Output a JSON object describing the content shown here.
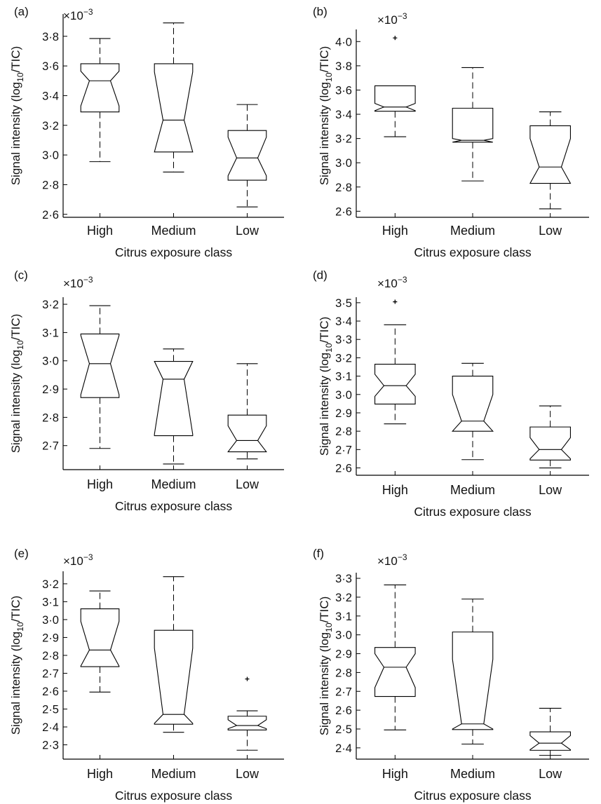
{
  "figure": {
    "panels": [
      "(a)",
      "(b)",
      "(c)",
      "(d)",
      "(e)",
      "(f)"
    ]
  },
  "chart_data": [
    {
      "type": "box",
      "panel_label": "(a)",
      "exponent_label": "×10",
      "exponent_power": "−3",
      "ylabel_main": "Signal intensity (log",
      "ylabel_sub": "10",
      "ylabel_tail": "/TIC)",
      "xlabel": "Citrus exposure class",
      "categories": [
        "High",
        "Medium",
        "Low"
      ],
      "ylim": [
        2.58,
        3.95
      ],
      "yticks": [
        2.6,
        2.8,
        3.0,
        3.2,
        3.4,
        3.6,
        3.8
      ],
      "ytick_labels": [
        "2·6",
        "2·8",
        "3·0",
        "3·2",
        "3·4",
        "3·6",
        "3·8"
      ],
      "boxes": [
        {
          "whislo": 2.955,
          "q1": 3.29,
          "med": 3.5,
          "q3": 3.615,
          "whishi": 3.785,
          "notch_lo": 3.33,
          "notch_hi": 3.565,
          "outliers": []
        },
        {
          "whislo": 2.885,
          "q1": 3.02,
          "med": 3.235,
          "q3": 3.615,
          "whishi": 3.89,
          "notch_lo": 3.02,
          "notch_hi": 3.56,
          "outliers": []
        },
        {
          "whislo": 2.65,
          "q1": 2.83,
          "med": 2.98,
          "q3": 3.165,
          "whishi": 3.34,
          "notch_lo": 2.86,
          "notch_hi": 3.12,
          "outliers": []
        }
      ]
    },
    {
      "type": "box",
      "panel_label": "(b)",
      "exponent_label": "×10",
      "exponent_power": "−3",
      "ylabel_main": "Signal intensity (log",
      "ylabel_sub": "10",
      "ylabel_tail": "/TIC)",
      "xlabel": "Citrus exposure class",
      "categories": [
        "High",
        "Medium",
        "Low"
      ],
      "ylim": [
        2.55,
        4.1
      ],
      "yticks": [
        2.6,
        2.8,
        3.0,
        3.2,
        3.4,
        3.6,
        3.8,
        4.0
      ],
      "ytick_labels": [
        "2·6",
        "2·8",
        "3·0",
        "3·2",
        "3·4",
        "3·6",
        "3·8",
        "4·0"
      ],
      "boxes": [
        {
          "whislo": 3.215,
          "q1": 3.425,
          "med": 3.46,
          "q3": 3.635,
          "whishi": 3.635,
          "notch_lo": 3.43,
          "notch_hi": 3.49,
          "outliers": [
            4.03
          ]
        },
        {
          "whislo": 2.85,
          "q1": 3.17,
          "med": 3.185,
          "q3": 3.45,
          "whishi": 3.785,
          "notch_lo": 3.17,
          "notch_hi": 3.2,
          "outliers": []
        },
        {
          "whislo": 2.62,
          "q1": 2.83,
          "med": 2.965,
          "q3": 3.305,
          "whishi": 3.42,
          "notch_lo": 2.83,
          "notch_hi": 3.2,
          "outliers": []
        }
      ]
    },
    {
      "type": "box",
      "panel_label": "(c)",
      "exponent_label": "×10",
      "exponent_power": "−3",
      "ylabel_main": "Signal intensity (log",
      "ylabel_sub": "10",
      "ylabel_tail": "/TIC)",
      "xlabel": "Citrus exposure class",
      "categories": [
        "High",
        "Medium",
        "Low"
      ],
      "ylim": [
        2.615,
        3.225
      ],
      "yticks": [
        2.7,
        2.8,
        2.9,
        3.0,
        3.1,
        3.2
      ],
      "ytick_labels": [
        "2·7",
        "2·8",
        "2·9",
        "3·0",
        "3·1",
        "3·2"
      ],
      "boxes": [
        {
          "whislo": 2.69,
          "q1": 2.87,
          "med": 2.99,
          "q3": 3.095,
          "whishi": 3.195,
          "notch_lo": 2.88,
          "notch_hi": 3.09,
          "outliers": []
        },
        {
          "whislo": 2.635,
          "q1": 2.735,
          "med": 2.935,
          "q3": 2.998,
          "whishi": 3.042,
          "notch_lo": 2.74,
          "notch_hi": 2.998,
          "outliers": []
        },
        {
          "whislo": 2.653,
          "q1": 2.678,
          "med": 2.718,
          "q3": 2.808,
          "whishi": 2.99,
          "notch_lo": 2.678,
          "notch_hi": 2.77,
          "outliers": []
        }
      ]
    },
    {
      "type": "box",
      "panel_label": "(d)",
      "exponent_label": "×10",
      "exponent_power": "−3",
      "ylabel_main": "Signal intensity (log",
      "ylabel_sub": "10",
      "ylabel_tail": "/TIC)",
      "xlabel": "Citrus exposure class",
      "categories": [
        "High",
        "Medium",
        "Low"
      ],
      "ylim": [
        2.56,
        3.53
      ],
      "yticks": [
        2.6,
        2.7,
        2.8,
        2.9,
        3.0,
        3.1,
        3.2,
        3.3,
        3.4,
        3.5
      ],
      "ytick_labels": [
        "2·6",
        "2·7",
        "2·8",
        "2·9",
        "3·0",
        "3·1",
        "3·2",
        "3·3",
        "3·4",
        "3·5"
      ],
      "boxes": [
        {
          "whislo": 2.84,
          "q1": 2.948,
          "med": 3.048,
          "q3": 3.165,
          "whishi": 3.38,
          "notch_lo": 2.99,
          "notch_hi": 3.11,
          "outliers": [
            3.505
          ]
        },
        {
          "whislo": 2.645,
          "q1": 2.8,
          "med": 2.855,
          "q3": 3.1,
          "whishi": 3.17,
          "notch_lo": 2.8,
          "notch_hi": 3.0,
          "outliers": []
        },
        {
          "whislo": 2.6,
          "q1": 2.643,
          "med": 2.7,
          "q3": 2.823,
          "whishi": 2.938,
          "notch_lo": 2.65,
          "notch_hi": 2.765,
          "outliers": []
        }
      ]
    },
    {
      "type": "box",
      "panel_label": "(e)",
      "exponent_label": "×10",
      "exponent_power": "−3",
      "ylabel_main": "Signal intensity (log",
      "ylabel_sub": "10",
      "ylabel_tail": "/TIC)",
      "xlabel": "Citrus exposure class",
      "categories": [
        "High",
        "Medium",
        "Low"
      ],
      "ylim": [
        2.22,
        3.27
      ],
      "yticks": [
        2.3,
        2.4,
        2.5,
        2.6,
        2.7,
        2.8,
        2.9,
        3.0,
        3.1,
        3.2
      ],
      "ytick_labels": [
        "2·3",
        "2·4",
        "2·5",
        "2·6",
        "2·7",
        "2·8",
        "2·9",
        "3·0",
        "3·1",
        "3·2"
      ],
      "boxes": [
        {
          "whislo": 2.595,
          "q1": 2.737,
          "med": 2.83,
          "q3": 3.06,
          "whishi": 3.16,
          "notch_lo": 2.74,
          "notch_hi": 2.99,
          "outliers": []
        },
        {
          "whislo": 2.37,
          "q1": 2.415,
          "med": 2.47,
          "q3": 2.94,
          "whishi": 3.24,
          "notch_lo": 2.42,
          "notch_hi": 2.84,
          "outliers": []
        },
        {
          "whislo": 2.27,
          "q1": 2.383,
          "med": 2.408,
          "q3": 2.46,
          "whishi": 2.49,
          "notch_lo": 2.39,
          "notch_hi": 2.44,
          "outliers": [
            2.668
          ]
        }
      ]
    },
    {
      "type": "box",
      "panel_label": "(f)",
      "exponent_label": "×10",
      "exponent_power": "−3",
      "ylabel_main": "Signal intensity (log",
      "ylabel_sub": "10",
      "ylabel_tail": "/TIC)",
      "xlabel": "Citrus exposure class",
      "categories": [
        "High",
        "Medium",
        "Low"
      ],
      "ylim": [
        2.34,
        3.33
      ],
      "yticks": [
        2.4,
        2.5,
        2.6,
        2.7,
        2.8,
        2.9,
        3.0,
        3.1,
        3.2,
        3.3
      ],
      "ytick_labels": [
        "2·4",
        "2·5",
        "2·6",
        "2·7",
        "2·8",
        "2·9",
        "3·0",
        "3·1",
        "3·2",
        "3·3"
      ],
      "boxes": [
        {
          "whislo": 2.495,
          "q1": 2.673,
          "med": 2.828,
          "q3": 2.933,
          "whishi": 3.265,
          "notch_lo": 2.72,
          "notch_hi": 2.9,
          "outliers": []
        },
        {
          "whislo": 2.42,
          "q1": 2.497,
          "med": 2.527,
          "q3": 3.015,
          "whishi": 3.19,
          "notch_lo": 2.5,
          "notch_hi": 2.87,
          "outliers": []
        },
        {
          "whislo": 2.36,
          "q1": 2.387,
          "med": 2.425,
          "q3": 2.485,
          "whishi": 2.61,
          "notch_lo": 2.39,
          "notch_hi": 2.465,
          "outliers": []
        }
      ]
    }
  ]
}
